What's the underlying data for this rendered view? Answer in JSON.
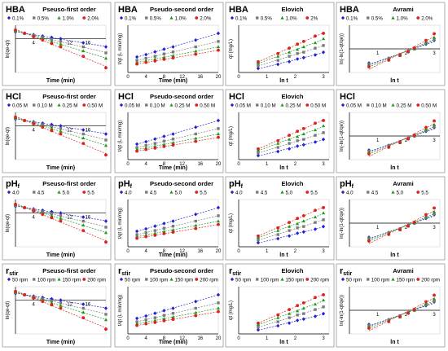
{
  "colors": [
    "#1f1fd6",
    "#7a7a7a",
    "#1c9a1c",
    "#e0201b"
  ],
  "rows": [
    {
      "rowKey": "HBA",
      "labelMain": "HBA",
      "labelSub": "",
      "legend": [
        "0.1%",
        "0.5%",
        "1.0%",
        "2.0%"
      ],
      "elovichLegend": [
        "0.1%",
        "0.5%",
        "1.0%",
        "2%"
      ]
    },
    {
      "rowKey": "HCl",
      "labelMain": "HCl",
      "labelSub": "",
      "legend": [
        "0.05 M",
        "0.10 M",
        "0.25 M",
        "0.50 M"
      ]
    },
    {
      "rowKey": "pHf",
      "labelMain": "pH",
      "labelSub": "f",
      "legend": [
        "4.0",
        "4.5",
        "5.0",
        "5.5"
      ]
    },
    {
      "rowKey": "rstir",
      "labelMain": "r",
      "labelSub": "stir",
      "legend": [
        "50 rpm",
        "100 rpm",
        "150 rpm",
        "200 rpm"
      ]
    }
  ],
  "chart_data": [
    {
      "type": "scatter",
      "model": "Pseudo-first order",
      "titles": [
        "Pseuso-first order",
        "Pseuso-first order",
        "Pseuso-first order",
        "Pseuso-first order"
      ],
      "xlabel": "Time (min)",
      "ylabel": "ln(qe-qt)",
      "xticks": [
        "4",
        "8",
        "12",
        "16"
      ],
      "x": [
        0,
        2,
        4,
        6,
        8,
        10,
        15,
        20
      ],
      "ylim": [
        -5,
        2
      ],
      "series": [
        {
          "name": "series-1",
          "values": [
            1.0,
            0.8,
            0.6,
            0.4,
            0.2,
            0.0,
            -0.6,
            -1.2
          ]
        },
        {
          "name": "series-2",
          "values": [
            1.1,
            0.8,
            0.5,
            0.2,
            -0.1,
            -0.4,
            -1.2,
            -2.1
          ]
        },
        {
          "name": "series-3",
          "values": [
            1.2,
            0.8,
            0.4,
            0.0,
            -0.4,
            -0.8,
            -1.8,
            -2.9
          ]
        },
        {
          "name": "series-4",
          "values": [
            1.3,
            0.8,
            0.3,
            -0.2,
            -0.7,
            -1.2,
            -2.6,
            -4.3
          ]
        }
      ]
    },
    {
      "type": "scatter",
      "model": "Pseudo-second order",
      "titles": [
        "Pseudo-second order",
        "Pseudo-second order",
        "Pseudo-second order",
        "Pseudo-second order"
      ],
      "xlabel": "Time (min)",
      "ylabel": "t/qt (L min/mg)",
      "xticks": [
        "0",
        "4",
        "8",
        "12",
        "16",
        "20"
      ],
      "x": [
        2,
        4,
        6,
        8,
        10,
        15,
        20
      ],
      "ylim": [
        0,
        14
      ],
      "series": [
        {
          "name": "series-1",
          "values": [
            4.6,
            5.3,
            6.1,
            6.9,
            7.6,
            9.6,
            11.6
          ]
        },
        {
          "name": "series-2",
          "values": [
            3.6,
            4.2,
            4.8,
            5.5,
            6.1,
            7.6,
            9.2
          ]
        },
        {
          "name": "series-3",
          "values": [
            3.0,
            3.5,
            4.0,
            4.5,
            5.0,
            6.3,
            7.6
          ]
        },
        {
          "name": "series-4",
          "values": [
            2.5,
            3.0,
            3.4,
            3.9,
            4.3,
            5.4,
            6.6
          ]
        }
      ]
    },
    {
      "type": "scatter",
      "model": "Elovich",
      "titles": [
        "Elovich",
        "Elovich",
        "Elovich",
        "Elovich"
      ],
      "xlabel": "ln t",
      "ylabel": "qt (mg/L)",
      "xticks": [
        "0",
        "1",
        "2",
        "3"
      ],
      "x": [
        0.69,
        1.39,
        1.79,
        2.08,
        2.3,
        2.71,
        3.0
      ],
      "ylim": [
        0,
        3.5
      ],
      "series": [
        {
          "name": "series-1",
          "values": [
            0.3,
            0.6,
            0.8,
            1.0,
            1.1,
            1.3,
            1.5
          ]
        },
        {
          "name": "series-2",
          "values": [
            0.5,
            0.9,
            1.2,
            1.4,
            1.5,
            1.8,
            2.0
          ]
        },
        {
          "name": "series-3",
          "values": [
            0.7,
            1.2,
            1.5,
            1.7,
            1.9,
            2.2,
            2.5
          ]
        },
        {
          "name": "series-4",
          "values": [
            0.8,
            1.4,
            1.8,
            2.1,
            2.3,
            2.7,
            2.9
          ]
        }
      ]
    },
    {
      "type": "scatter",
      "model": "Avrami",
      "titles": [
        "Avrami",
        "",
        "Avrami",
        "Avrami"
      ],
      "xlabel": "ln t",
      "ylabel": "ln(-ln(1-qt/qe))",
      "xticks": [
        "1",
        "2",
        "3"
      ],
      "x": [
        0.69,
        1.39,
        1.79,
        2.08,
        2.3,
        2.71,
        3.0
      ],
      "ylim": [
        -2.5,
        2.5
      ],
      "series": [
        {
          "name": "series-1",
          "values": [
            -1.5,
            -1.0,
            -0.6,
            -0.3,
            0.0,
            0.5,
            0.9
          ]
        },
        {
          "name": "series-2",
          "values": [
            -1.6,
            -1.0,
            -0.6,
            -0.3,
            0.0,
            0.6,
            1.0
          ]
        },
        {
          "name": "series-3",
          "values": [
            -1.7,
            -1.1,
            -0.7,
            -0.3,
            0.0,
            0.7,
            1.2
          ]
        },
        {
          "name": "series-4",
          "values": [
            -1.9,
            -1.2,
            -0.7,
            -0.3,
            0.1,
            0.9,
            1.6
          ]
        }
      ]
    }
  ]
}
